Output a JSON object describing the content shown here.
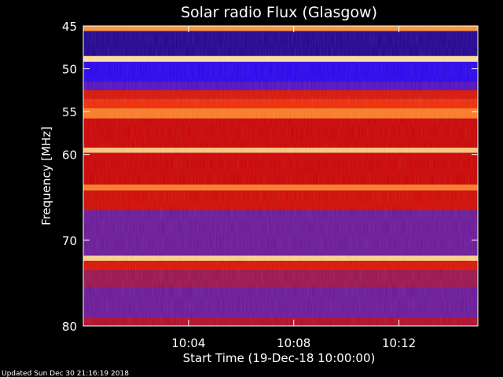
{
  "chart_data": {
    "type": "heatmap",
    "title": "Solar radio Flux (Glasgow)",
    "ylabel": "Frequency [MHz]",
    "xlabel": "Start Time (19-Dec-18 10:00:00)",
    "ylim": [
      45,
      80
    ],
    "y_ticks": [
      45,
      50,
      55,
      60,
      70,
      80
    ],
    "y_tick_labels": [
      "45",
      "50",
      "55",
      "60",
      "70",
      "80"
    ],
    "x_range_minutes": [
      0,
      15
    ],
    "x_ticks": [
      4,
      8,
      12
    ],
    "x_tick_labels": [
      "10:04",
      "10:08",
      "10:12"
    ],
    "colormap": [
      "#1a0060",
      "#2a00ff",
      "#7a1a80",
      "#cc0000",
      "#ff3a00",
      "#ff8a2a",
      "#ffe0a0"
    ],
    "frequency_bands": [
      {
        "from": 45.0,
        "to": 45.6,
        "level": 0.85
      },
      {
        "from": 45.6,
        "to": 48.5,
        "level": 0.05
      },
      {
        "from": 48.5,
        "to": 49.2,
        "level": 1.0
      },
      {
        "from": 49.2,
        "to": 51.5,
        "level": 0.15
      },
      {
        "from": 51.5,
        "to": 52.5,
        "level": 0.25
      },
      {
        "from": 52.5,
        "to": 53.5,
        "level": 0.55
      },
      {
        "from": 53.5,
        "to": 54.6,
        "level": 0.62
      },
      {
        "from": 54.6,
        "to": 55.8,
        "level": 0.8
      },
      {
        "from": 55.8,
        "to": 59.2,
        "level": 0.5
      },
      {
        "from": 59.2,
        "to": 59.8,
        "level": 0.95
      },
      {
        "from": 59.8,
        "to": 63.5,
        "level": 0.5
      },
      {
        "from": 63.5,
        "to": 64.2,
        "level": 0.8
      },
      {
        "from": 64.2,
        "to": 66.5,
        "level": 0.52
      },
      {
        "from": 66.5,
        "to": 71.8,
        "level": 0.3
      },
      {
        "from": 71.8,
        "to": 72.4,
        "level": 0.97
      },
      {
        "from": 72.4,
        "to": 73.5,
        "level": 0.55
      },
      {
        "from": 73.5,
        "to": 75.5,
        "level": 0.4
      },
      {
        "from": 75.5,
        "to": 79.0,
        "level": 0.3
      },
      {
        "from": 79.0,
        "to": 80.0,
        "level": 0.45
      }
    ],
    "footer": "Updated Sun Dec 30 21:16:19 2018"
  }
}
